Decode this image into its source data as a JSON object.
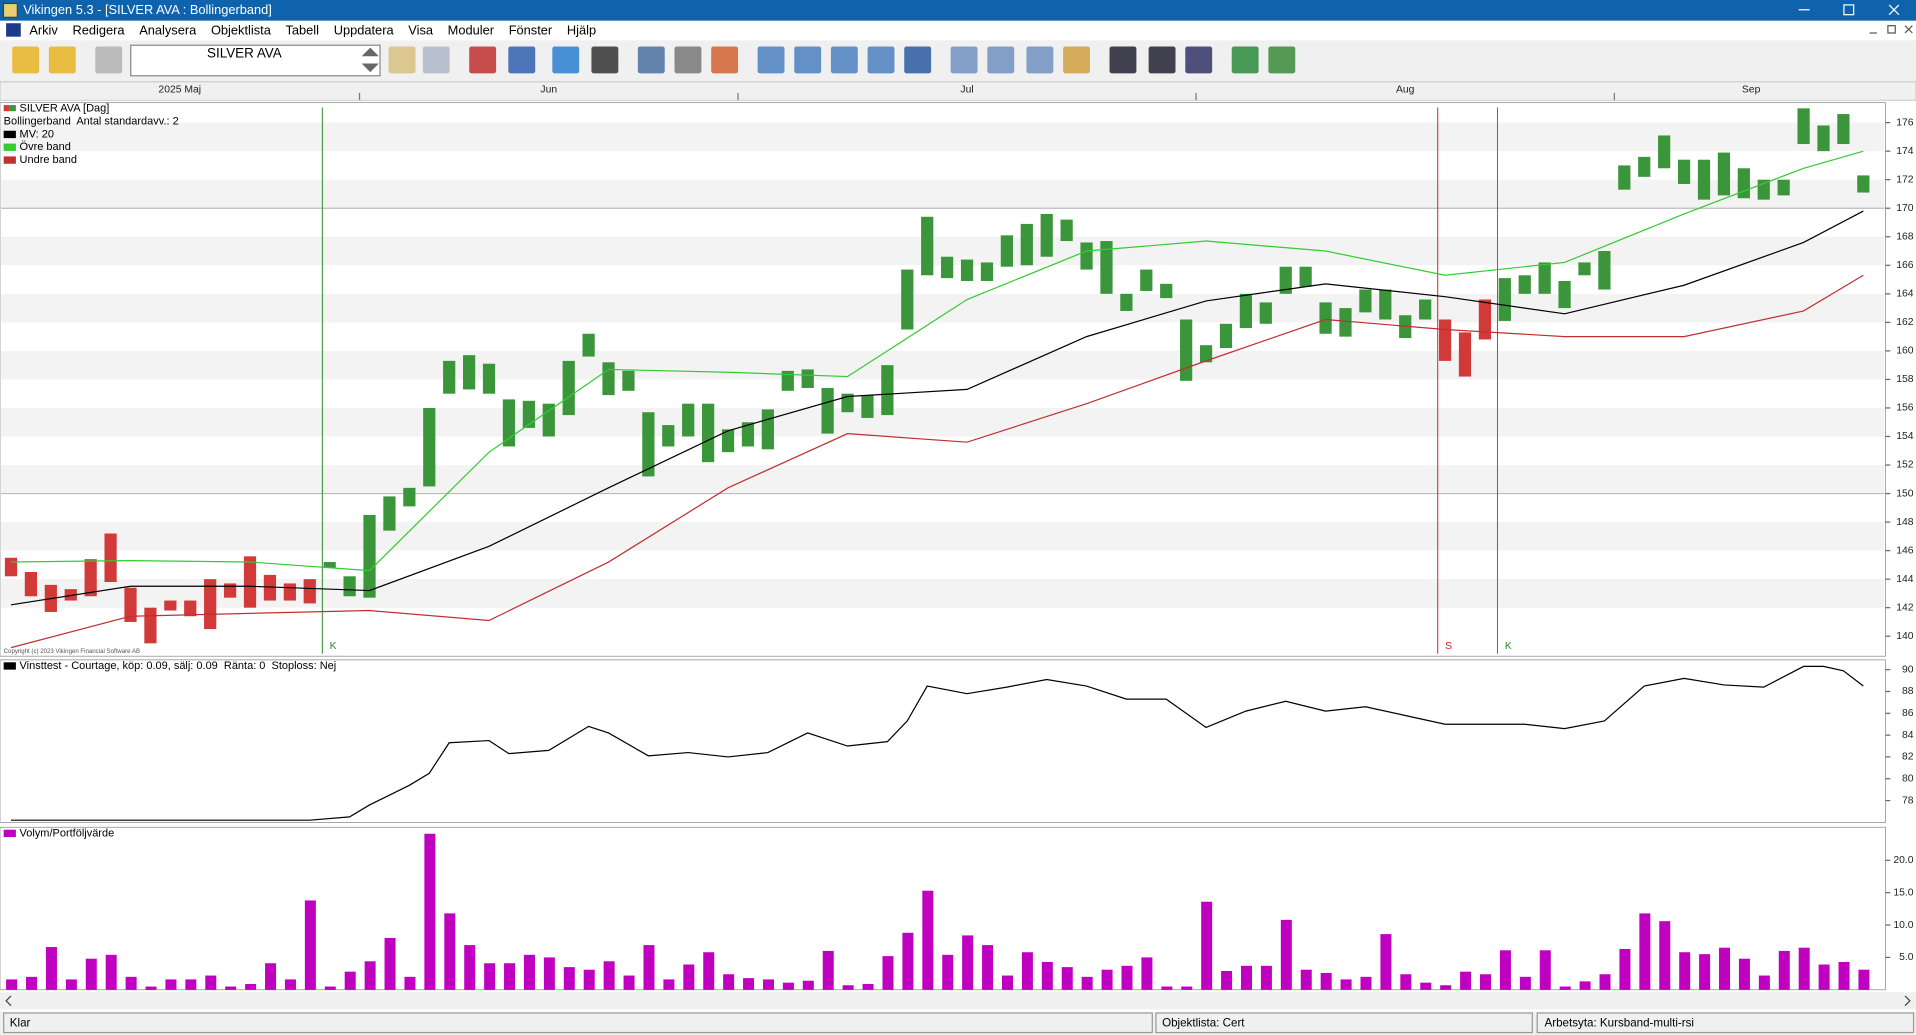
{
  "window_title": "Vikingen 5.3 - [SILVER AVA : Bollingerband]",
  "menu": [
    "Arkiv",
    "Redigera",
    "Analysera",
    "Objektlista",
    "Tabell",
    "Uppdatera",
    "Visa",
    "Moduler",
    "Fönster",
    "Hjälp"
  ],
  "toolbar": {
    "object_field": "SILVER AVA"
  },
  "months": [
    {
      "label": "2025 Maj",
      "start": 0
    },
    {
      "label": "Jun",
      "start": 18
    },
    {
      "label": "Jul",
      "start": 37
    },
    {
      "label": "Aug",
      "start": 60
    },
    {
      "label": "Sep",
      "start": 81
    }
  ],
  "status_bar": [
    "Klar",
    "Objektlista: Cert",
    "Arbetsyta: Kursband-multi-rsi"
  ],
  "chart_data": [
    {
      "type": "hilo",
      "title": "SILVER AVA [Dag]",
      "subtitle": "Bollingerband  Antal standardavv.: 2",
      "copyright": "Copyright (c) 2023 Vikingen Financial Software AB",
      "high": [
        145.5,
        144.5,
        143.6,
        143.3,
        145.4,
        147.2,
        143.4,
        142,
        142.5,
        142.5,
        144,
        143.7,
        145.6,
        144.3,
        143.7,
        144,
        145.2,
        144.2,
        148.5,
        149.8,
        150.4,
        156,
        159.3,
        159.7,
        159.1,
        156.6,
        156.5,
        156.3,
        159.3,
        161.2,
        159.2,
        158.6,
        155.7,
        154.8,
        156.3,
        156.3,
        154.5,
        155,
        155.9,
        158.6,
        158.7,
        157.4,
        157,
        156.9,
        159,
        165.7,
        169.4,
        166.6,
        166.4,
        166.2,
        168.1,
        168.9,
        169.6,
        169.2,
        167.6,
        167.7,
        164,
        165.7,
        164.7,
        162.2,
        160.4,
        161.9,
        164,
        163.4,
        165.9,
        165.9,
        163.4,
        163,
        164.3,
        164.3,
        162.5,
        163.6,
        162.2,
        161.3,
        163.6,
        165.1,
        165.3,
        166.2,
        164.9,
        166.2,
        167,
        173,
        173.6,
        175.1,
        173.4,
        173.4,
        173.9,
        172.8,
        172,
        172,
        177,
        175.8,
        176.6,
        172.3
      ],
      "low": [
        144.2,
        142.8,
        141.7,
        142.5,
        142.8,
        143.8,
        141,
        139.5,
        141.8,
        141.4,
        140.5,
        142.7,
        142,
        142.5,
        142.5,
        142.3,
        144.8,
        142.8,
        142.7,
        147.4,
        149.1,
        150.5,
        157,
        157.3,
        157,
        153.3,
        154.6,
        154,
        155.5,
        159.6,
        156.9,
        157.2,
        151.2,
        153.3,
        154,
        152.2,
        152.9,
        153.3,
        153.1,
        157.2,
        157.4,
        154.2,
        155.7,
        155.3,
        155.5,
        161.5,
        165.3,
        165.1,
        164.9,
        164.9,
        165.9,
        166,
        166.6,
        167.7,
        165.7,
        164,
        162.8,
        164.2,
        163.7,
        157.9,
        159.2,
        160.2,
        161.6,
        161.9,
        164,
        164.5,
        161.2,
        161,
        162.7,
        162.2,
        160.9,
        162.2,
        159.3,
        158.2,
        160.8,
        162.1,
        164,
        164,
        163,
        165.3,
        164.3,
        171.3,
        172.2,
        172.8,
        171.7,
        170.6,
        170.9,
        170.7,
        170.6,
        170.9,
        174.5,
        174,
        174.5,
        171.1
      ],
      "buy_color": "#3b963b",
      "sell_color": "#d23a3a",
      "signals": [
        {
          "label": "K",
          "index": 16,
          "color": "#2e8b2e"
        },
        {
          "label": "S",
          "index": 72,
          "color": "#d02020"
        },
        {
          "label": "K",
          "index": 75,
          "color": "#2e8b2e"
        }
      ],
      "lines": [
        {
          "name": "MV: 20",
          "color": "#000000",
          "x": [
            0,
            6,
            12,
            18,
            24,
            30,
            36,
            42,
            48,
            54,
            60,
            66,
            72,
            78,
            84,
            90,
            93
          ],
          "values": [
            142.2,
            143.5,
            143.5,
            143.2,
            146.3,
            150.4,
            154.4,
            156.8,
            157.3,
            161,
            163.5,
            164.7,
            163.8,
            162.6,
            164.6,
            167.6,
            169.8
          ]
        },
        {
          "name": "Övre band",
          "color": "#33cc33",
          "x": [
            0,
            6,
            12,
            18,
            24,
            30,
            36,
            42,
            48,
            54,
            60,
            66,
            72,
            78,
            84,
            90,
            93
          ],
          "values": [
            145.2,
            145.3,
            145.2,
            144.6,
            152.9,
            158.7,
            158.5,
            158.2,
            163.6,
            167,
            167.7,
            167,
            165.3,
            166.2,
            169.6,
            172.8,
            174
          ]
        },
        {
          "name": "Undre band",
          "color": "#c03030",
          "x": [
            0,
            6,
            12,
            18,
            24,
            30,
            36,
            42,
            48,
            54,
            60,
            66,
            72,
            78,
            84,
            90,
            93
          ],
          "values": [
            139.2,
            141.4,
            141.6,
            141.8,
            141.1,
            145.2,
            150.4,
            154.2,
            153.6,
            156.3,
            159.3,
            162.2,
            161.5,
            161,
            161,
            162.8,
            165.3
          ]
        }
      ],
      "ylim": [
        138.6,
        177.4
      ],
      "yticks": [
        140,
        142,
        144,
        146,
        148,
        150,
        152,
        154,
        156,
        158,
        160,
        162,
        164,
        166,
        168,
        170,
        172,
        174,
        176
      ],
      "hlines": [
        150,
        170
      ]
    },
    {
      "type": "line",
      "title": "Vinsttest - Courtage, köp: 0.09, sälj: 0.09  Ränta: 0  Stoploss: Nej",
      "color": "#000000",
      "x": [
        0,
        3,
        6,
        9,
        12,
        15,
        17,
        18,
        20,
        21,
        22,
        24,
        25,
        27,
        29,
        30,
        32,
        34,
        36,
        38,
        40,
        42,
        44,
        45,
        46,
        48,
        50,
        52,
        54,
        56,
        58,
        60,
        62,
        64,
        66,
        68,
        70,
        72,
        74,
        76,
        78,
        80,
        82,
        84,
        86,
        88,
        90,
        91,
        92,
        93
      ],
      "values": [
        76.2,
        76.2,
        76.2,
        76.2,
        76.2,
        76.2,
        76.5,
        77.6,
        79.4,
        80.5,
        83.3,
        83.5,
        82.3,
        82.6,
        84.8,
        84.2,
        82.1,
        82.4,
        82,
        82.4,
        84.2,
        83,
        83.4,
        85.3,
        88.5,
        87.8,
        88.4,
        89.1,
        88.5,
        87.3,
        87.3,
        84.7,
        86.2,
        87.1,
        86.2,
        86.6,
        85.8,
        85,
        85,
        85,
        84.6,
        85.3,
        88.5,
        89.2,
        88.6,
        88.4,
        90.3,
        90.3,
        89.9,
        88.5
      ],
      "ylim": [
        76,
        90.9
      ],
      "yticks": [
        78,
        80,
        82,
        84,
        86,
        88,
        90
      ]
    },
    {
      "type": "bar",
      "title": "Volym/Portföljvärde",
      "color": "#c000c0",
      "values": [
        1.6,
        2,
        6.6,
        1.6,
        4.8,
        5.4,
        2,
        0.5,
        1.6,
        1.6,
        2.2,
        0.5,
        0.9,
        4.1,
        1.6,
        13.8,
        0.5,
        2.8,
        4.4,
        8,
        2,
        24.1,
        11.8,
        6.9,
        4.1,
        4.1,
        5.4,
        5,
        3.5,
        3.1,
        4.4,
        2.2,
        6.9,
        1.6,
        3.9,
        5.8,
        2.4,
        1.8,
        1.6,
        1.1,
        1.4,
        6,
        0.7,
        0.9,
        5.2,
        8.8,
        15.3,
        5.4,
        8.4,
        6.9,
        2.2,
        5.8,
        4.3,
        3.5,
        2,
        3.1,
        3.7,
        5,
        0.5,
        0.5,
        13.6,
        2.9,
        3.7,
        3.7,
        10.8,
        3.1,
        2.6,
        1.6,
        2,
        8.6,
        2.4,
        1.1,
        0.7,
        2.8,
        2.4,
        6.1,
        2,
        6.1,
        0.5,
        1.3,
        2.4,
        6.3,
        11.8,
        10.6,
        5.8,
        5.5,
        6.5,
        4.8,
        2.2,
        6,
        6.5,
        3.9,
        4.3,
        3.1
      ],
      "ylim": [
        0,
        25.1
      ],
      "yticks": [
        {
          "value": 5,
          "label": "5.0"
        },
        {
          "value": 10,
          "label": "10.0"
        },
        {
          "value": 15,
          "label": "15.0"
        },
        {
          "value": 20,
          "label": "20.0"
        }
      ]
    }
  ]
}
